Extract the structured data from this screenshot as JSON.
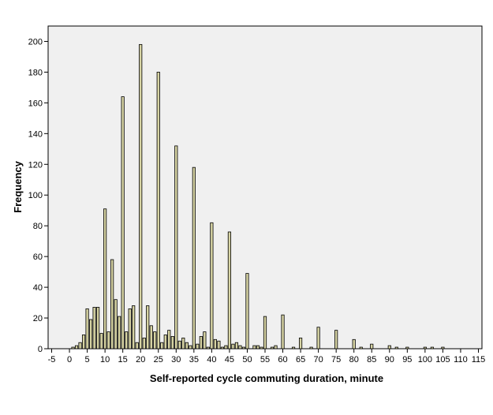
{
  "chart_data": {
    "type": "bar",
    "xlabel": "Self-reported cycle commuting duration, minute",
    "ylabel": "Frequency",
    "xlim": [
      -6,
      116
    ],
    "ylim": [
      0,
      210
    ],
    "x_ticks": [
      -5,
      0,
      5,
      10,
      15,
      20,
      25,
      30,
      35,
      40,
      45,
      50,
      55,
      60,
      65,
      70,
      75,
      80,
      85,
      90,
      95,
      100,
      105,
      110,
      115
    ],
    "y_ticks": [
      0,
      20,
      40,
      60,
      80,
      100,
      120,
      140,
      160,
      180,
      200
    ],
    "grid": false,
    "colors": {
      "bar_fill": "#d6d3a3",
      "bar_stroke": "#000000",
      "plot_bg": "#f0f0f0"
    },
    "x": [
      1,
      2,
      3,
      4,
      5,
      6,
      7,
      8,
      9,
      10,
      11,
      12,
      13,
      14,
      15,
      16,
      17,
      18,
      19,
      20,
      21,
      22,
      23,
      24,
      25,
      26,
      27,
      28,
      29,
      30,
      31,
      32,
      33,
      34,
      35,
      36,
      37,
      38,
      39,
      40,
      41,
      42,
      43,
      44,
      45,
      46,
      47,
      48,
      49,
      50,
      52,
      53,
      54,
      55,
      57,
      58,
      60,
      63,
      65,
      68,
      70,
      75,
      80,
      82,
      85,
      90,
      92,
      95,
      100,
      102,
      105
    ],
    "values": [
      1,
      2,
      4,
      9,
      26,
      19,
      27,
      27,
      10,
      91,
      11,
      58,
      32,
      21,
      164,
      11,
      26,
      28,
      4,
      198,
      7,
      28,
      15,
      11,
      180,
      4,
      9,
      12,
      8,
      132,
      5,
      7,
      4,
      2,
      118,
      3,
      8,
      11,
      1,
      82,
      6,
      5,
      1,
      2,
      76,
      3,
      4,
      2,
      1,
      49,
      2,
      2,
      1,
      21,
      1,
      2,
      22,
      1,
      7,
      1,
      14,
      12,
      6,
      1,
      3,
      2,
      1,
      1,
      1,
      1,
      1
    ]
  }
}
